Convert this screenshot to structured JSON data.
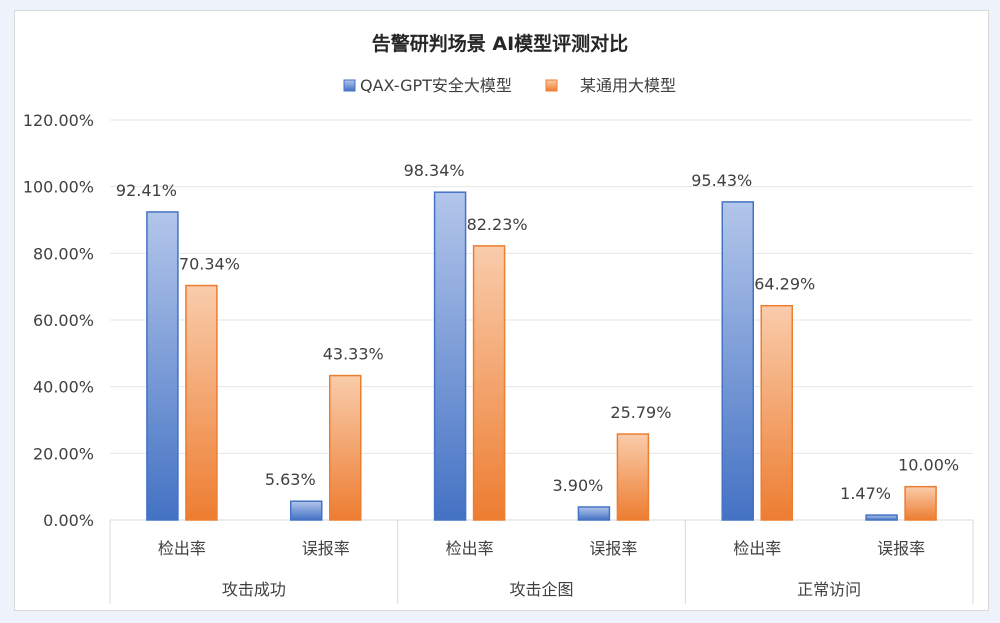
{
  "chart_data": {
    "type": "bar",
    "title": "告警研判场景 AI模型评测对比",
    "groups": [
      "攻击成功",
      "攻击企图",
      "正常访问"
    ],
    "categories": [
      "检出率",
      "误报率",
      "检出率",
      "误报率",
      "检出率",
      "误报率"
    ],
    "series": [
      {
        "name": "QAX-GPT安全大模型",
        "values": [
          92.41,
          5.63,
          98.34,
          3.9,
          95.43,
          1.47
        ],
        "labels": [
          "92.41%",
          "5.63%",
          "98.34%",
          "3.90%",
          "95.43%",
          "1.47%"
        ],
        "color": "#4472c4"
      },
      {
        "name": "某通用大模型",
        "values": [
          70.34,
          43.33,
          82.23,
          25.79,
          64.29,
          10.0
        ],
        "labels": [
          "70.34%",
          "43.33%",
          "82.23%",
          "25.79%",
          "64.29%",
          "10.00%"
        ],
        "color": "#ed7d31"
      }
    ],
    "ylim": [
      0,
      120
    ],
    "yticks": [
      "0.00%",
      "20.00%",
      "40.00%",
      "60.00%",
      "80.00%",
      "100.00%",
      "120.00%"
    ],
    "grid": true,
    "legend_position": "top"
  }
}
